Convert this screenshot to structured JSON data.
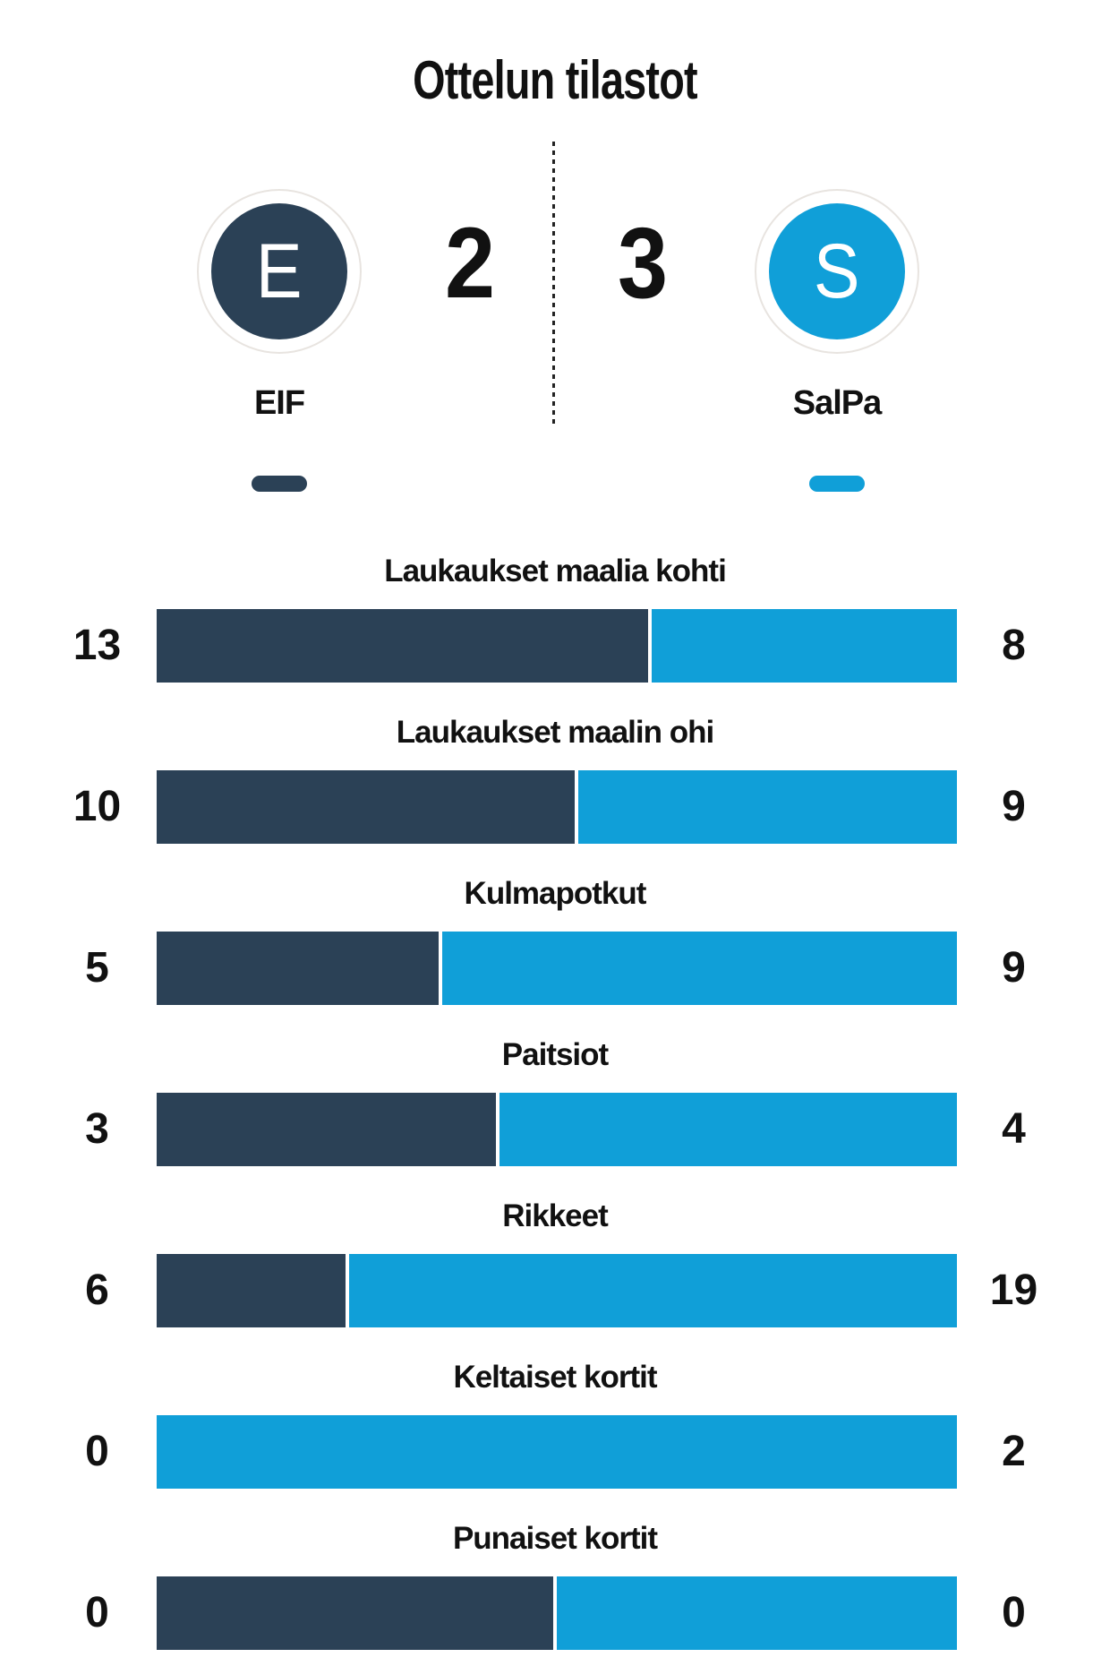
{
  "title": "Ottelun tilastot",
  "scoreboard": {
    "home": {
      "initial": "E",
      "name": "EIF",
      "score": "2"
    },
    "away": {
      "initial": "S",
      "name": "SalPa",
      "score": "3"
    }
  },
  "colors": {
    "home": "#2b4156",
    "away": "#109fd8",
    "ink": "#111111",
    "ring": "#e8e4e0",
    "background": "#ffffff"
  },
  "chart_data": {
    "type": "bar",
    "subtype": "horizontal-shared-stacked-bars",
    "title": "Ottelun tilastot",
    "categories": [
      "Laukaukset maalia kohti",
      "Laukaukset maalin ohi",
      "Kulmapotkut",
      "Paitsiot",
      "Rikkeet",
      "Keltaiset kortit",
      "Punaiset kortit"
    ],
    "series": [
      {
        "name": "EIF",
        "color": "#2b4156",
        "values": [
          13,
          10,
          5,
          3,
          6,
          0,
          0
        ]
      },
      {
        "name": "SalPa",
        "color": "#109fd8",
        "values": [
          8,
          9,
          9,
          4,
          19,
          2,
          0
        ]
      }
    ],
    "score": {
      "EIF": 2,
      "SalPa": 3
    },
    "grid": false,
    "legend_position": "top",
    "value_labels": "both-ends",
    "note_zero_split": "when both values are 0 the bar is split 50/50"
  }
}
